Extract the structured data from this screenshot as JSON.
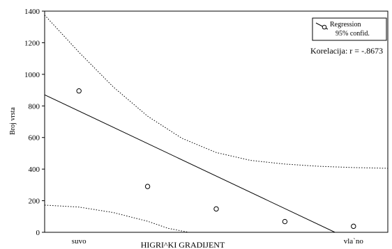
{
  "chart_data": {
    "type": "scatter",
    "xlabel": "HIGRI^KI GRADIJENT",
    "ylabel": "Broj vrsta",
    "ylim": [
      0,
      1400
    ],
    "y_ticks": [
      0,
      200,
      400,
      600,
      800,
      1000,
      1200,
      1400
    ],
    "xlim": [
      0.5,
      5.5
    ],
    "x_tick_labels": [
      {
        "x": 1,
        "label": "suvo"
      },
      {
        "x": 5,
        "label": "vla`no"
      }
    ],
    "points": [
      {
        "x": 1,
        "y": 895
      },
      {
        "x": 2,
        "y": 290
      },
      {
        "x": 3,
        "y": 148
      },
      {
        "x": 4,
        "y": 68
      },
      {
        "x": 5,
        "y": 38
      }
    ],
    "regression": {
      "intercept": 973.4,
      "slope": -205.8
    },
    "confidence_upper": [
      {
        "x": 0.5,
        "y": 1375
      },
      {
        "x": 1.0,
        "y": 1140
      },
      {
        "x": 1.5,
        "y": 920
      },
      {
        "x": 2.0,
        "y": 735
      },
      {
        "x": 2.5,
        "y": 595
      },
      {
        "x": 3.0,
        "y": 505
      },
      {
        "x": 3.5,
        "y": 455
      },
      {
        "x": 4.0,
        "y": 432
      },
      {
        "x": 4.5,
        "y": 418
      },
      {
        "x": 5.0,
        "y": 410
      },
      {
        "x": 5.5,
        "y": 405
      }
    ],
    "confidence_lower": [
      {
        "x": 0.5,
        "y": 172
      },
      {
        "x": 1.0,
        "y": 160
      },
      {
        "x": 1.5,
        "y": 125
      },
      {
        "x": 2.0,
        "y": 70
      },
      {
        "x": 2.3,
        "y": 25
      },
      {
        "x": 2.6,
        "y": 0
      }
    ],
    "legend": {
      "position": "top-right",
      "entries": [
        "Regression",
        "95% confid."
      ]
    },
    "annotation": "Korelacija: r = -.8673",
    "grid": false
  }
}
